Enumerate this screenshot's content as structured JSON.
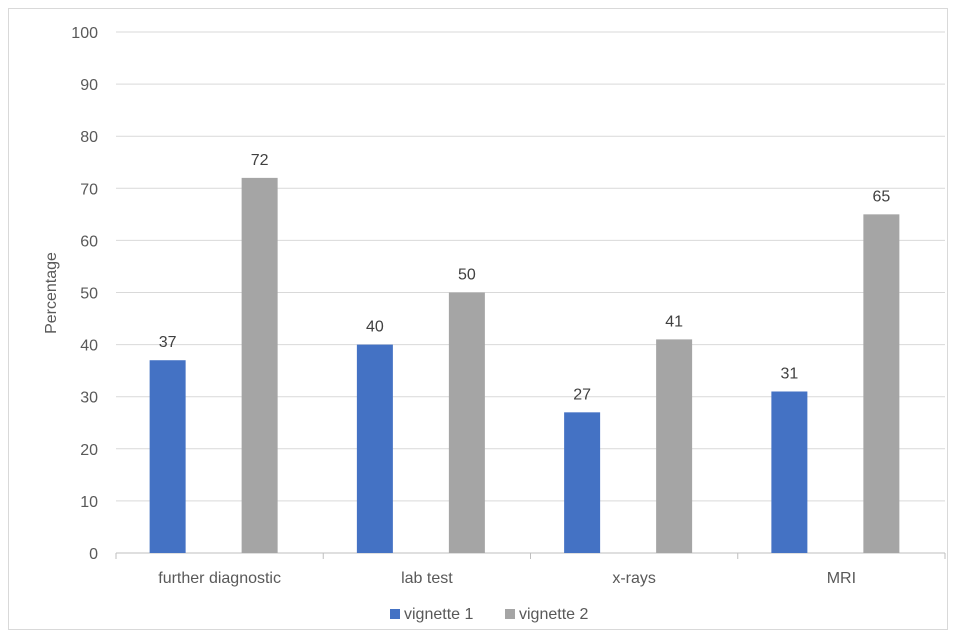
{
  "chart_data": {
    "type": "bar",
    "title": "",
    "xlabel": "",
    "ylabel": "Percentage",
    "ylim": [
      0,
      100
    ],
    "ytick_step": 10,
    "grid": true,
    "legend_position": "bottom",
    "categories": [
      "further diagnostic",
      "lab test",
      "x-rays",
      "MRI"
    ],
    "series": [
      {
        "name": "vignette 1",
        "color": "#4472c4",
        "values": [
          37,
          40,
          27,
          31
        ]
      },
      {
        "name": "vignette 2",
        "color": "#a5a5a5",
        "values": [
          72,
          50,
          41,
          65
        ]
      }
    ]
  }
}
